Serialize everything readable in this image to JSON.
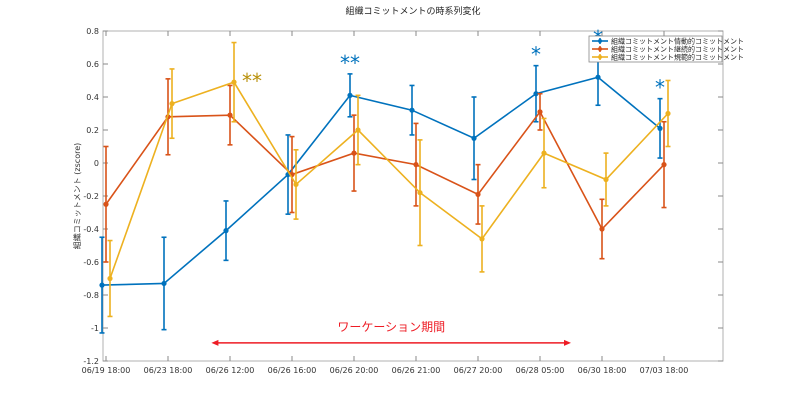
{
  "chart_data": {
    "type": "line",
    "title": "組織コミットメントの時系列変化",
    "xlabel": "",
    "ylabel": "組織コミットメント (zscore)",
    "categories": [
      "06/19 18:00",
      "06/23 18:00",
      "06/26 12:00",
      "06/26 16:00",
      "06/26 20:00",
      "06/26 21:00",
      "06/27 20:00",
      "06/28 05:00",
      "06/30 18:00",
      "07/03 18:00"
    ],
    "ylim": [
      -1.2,
      0.8
    ],
    "yticks": [
      "0.8",
      "0.6",
      "0.4",
      "0.2",
      "0",
      "-0.2",
      "-0.4",
      "-0.6",
      "-0.8",
      "-1",
      "-1.2"
    ],
    "ytick_values": [
      0.8,
      0.6,
      0.4,
      0.2,
      0,
      -0.2,
      -0.4,
      -0.6,
      -0.8,
      -1,
      -1.2
    ],
    "grid": false,
    "legend_position": "top-right",
    "series": [
      {
        "name": "組織コミットメント情動的コミットメント",
        "color": "#0072bd",
        "values": [
          -0.74,
          -0.73,
          -0.41,
          -0.07,
          0.41,
          0.32,
          0.15,
          0.42,
          0.52,
          0.21
        ],
        "errors": [
          0.29,
          0.28,
          0.18,
          0.24,
          0.13,
          0.15,
          0.25,
          0.17,
          0.17,
          0.18
        ]
      },
      {
        "name": "組織コミットメント継続的コミットメント",
        "color": "#d95319",
        "values": [
          -0.25,
          0.28,
          0.29,
          -0.07,
          0.06,
          -0.01,
          -0.19,
          0.31,
          -0.4,
          -0.01
        ],
        "errors": [
          0.35,
          0.23,
          0.18,
          0.23,
          0.23,
          0.25,
          0.18,
          0.11,
          0.18,
          0.26
        ]
      },
      {
        "name": "組織コミットメント規範的コミットメント",
        "color": "#edb120",
        "values": [
          -0.7,
          0.36,
          0.49,
          -0.13,
          0.2,
          -0.18,
          -0.46,
          0.06,
          -0.1,
          0.3
        ],
        "errors": [
          0.23,
          0.21,
          0.24,
          0.21,
          0.21,
          0.32,
          0.2,
          0.21,
          0.16,
          0.2
        ]
      }
    ],
    "annotations": [
      {
        "text": "**",
        "x_index": 2,
        "y": 0.49,
        "color": "#b8900a",
        "series": 2
      },
      {
        "text": "**",
        "x_index": 4,
        "y": 0.41,
        "color": "#0072bd",
        "series": 0
      },
      {
        "text": "*",
        "x_index": 7,
        "y": 0.42,
        "color": "#0072bd",
        "series": 0
      },
      {
        "text": "*",
        "x_index": 8,
        "y": 0.52,
        "color": "#0072bd",
        "series": 0
      },
      {
        "text": "*",
        "x_index": 9,
        "y": 0.21,
        "color": "#0072bd",
        "series": 0
      }
    ],
    "period_annotation": {
      "text": "ワーケーション期間",
      "color": "#ee1c25",
      "from_index": 1.7,
      "to_index": 7.5,
      "y": -1.09
    }
  }
}
